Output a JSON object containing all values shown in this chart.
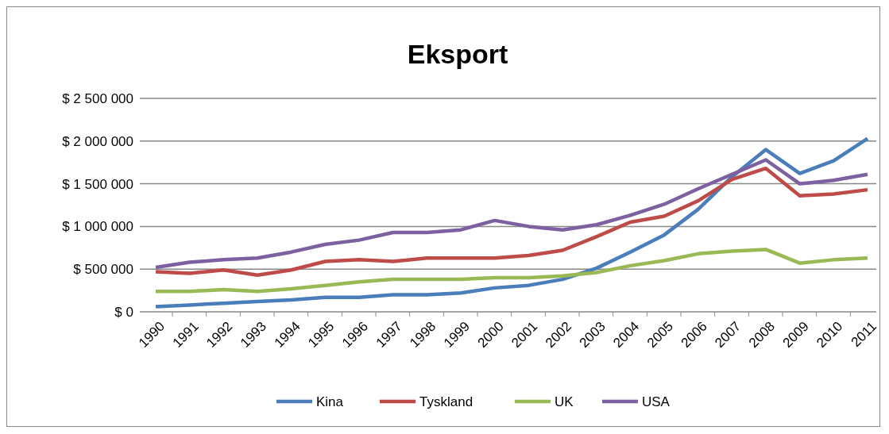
{
  "chart_data": {
    "type": "line",
    "title": "Eksport",
    "categories": [
      "1990",
      "1991",
      "1992",
      "1993",
      "1994",
      "1995",
      "1996",
      "1997",
      "1998",
      "1999",
      "2000",
      "2001",
      "2002",
      "2003",
      "2004",
      "2005",
      "2006",
      "2007",
      "2008",
      "2009",
      "2010",
      "2011"
    ],
    "series": [
      {
        "name": "Kina",
        "color": "#4a7ebb",
        "values": [
          60000,
          80000,
          100000,
          120000,
          140000,
          170000,
          170000,
          200000,
          200000,
          220000,
          280000,
          310000,
          380000,
          510000,
          700000,
          900000,
          1200000,
          1580000,
          1900000,
          1620000,
          1770000,
          2030000
        ]
      },
      {
        "name": "Tyskland",
        "color": "#be4b48",
        "values": [
          470000,
          450000,
          490000,
          430000,
          490000,
          590000,
          610000,
          590000,
          630000,
          630000,
          630000,
          660000,
          720000,
          880000,
          1050000,
          1120000,
          1300000,
          1550000,
          1680000,
          1360000,
          1380000,
          1430000
        ]
      },
      {
        "name": "UK",
        "color": "#98b954",
        "values": [
          240000,
          240000,
          260000,
          240000,
          270000,
          310000,
          350000,
          380000,
          380000,
          380000,
          400000,
          400000,
          420000,
          460000,
          540000,
          600000,
          680000,
          710000,
          730000,
          570000,
          610000,
          630000
        ]
      },
      {
        "name": "USA",
        "color": "#7d60a0",
        "values": [
          520000,
          580000,
          610000,
          630000,
          700000,
          790000,
          840000,
          930000,
          930000,
          960000,
          1070000,
          1000000,
          960000,
          1020000,
          1130000,
          1260000,
          1440000,
          1610000,
          1780000,
          1500000,
          1540000,
          1610000
        ]
      }
    ],
    "ylim": [
      0,
      2500000
    ],
    "yticks": [
      {
        "value": 0,
        "label": "$ 0"
      },
      {
        "value": 500000,
        "label": "$ 500 000"
      },
      {
        "value": 1000000,
        "label": "$ 1 000 000"
      },
      {
        "value": 1500000,
        "label": "$ 1 500 000"
      },
      {
        "value": 2000000,
        "label": "$ 2 000 000"
      },
      {
        "value": 2500000,
        "label": "$ 2 500 000"
      }
    ],
    "grid": "y",
    "legend": "bottom",
    "marker": "none",
    "line_style": "solid"
  }
}
